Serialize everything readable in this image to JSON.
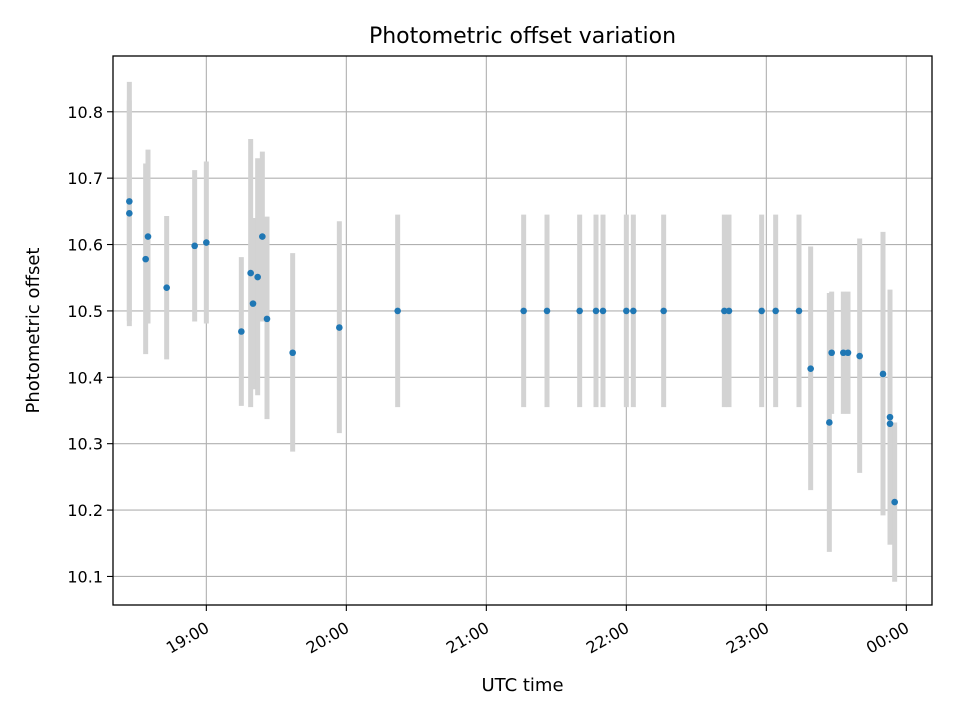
{
  "chart_data": {
    "type": "scatter",
    "title": "Photometric offset variation",
    "xlabel": "UTC time",
    "ylabel": "Photometric offset",
    "xlim": [
      "18:20",
      "00:11"
    ],
    "ylim": [
      10.057,
      10.884
    ],
    "x_ticks": [
      "19:00",
      "20:00",
      "21:00",
      "22:00",
      "23:00",
      "00:00"
    ],
    "y_ticks": [
      "10.1",
      "10.2",
      "10.3",
      "10.4",
      "10.5",
      "10.6",
      "10.7",
      "10.8"
    ],
    "grid": true,
    "marker_color": "#1f77b4",
    "errorbar_color": "#d3d3d3",
    "points": [
      {
        "t": "18:27",
        "y": 10.647,
        "lo": 10.477,
        "hi": 10.817
      },
      {
        "t": "18:27",
        "y": 10.665,
        "lo": 10.485,
        "hi": 10.845
      },
      {
        "t": "18:34",
        "y": 10.578,
        "lo": 10.435,
        "hi": 10.722
      },
      {
        "t": "18:35",
        "y": 10.612,
        "lo": 10.481,
        "hi": 10.743
      },
      {
        "t": "18:43",
        "y": 10.535,
        "lo": 10.427,
        "hi": 10.643
      },
      {
        "t": "18:55",
        "y": 10.598,
        "lo": 10.484,
        "hi": 10.712
      },
      {
        "t": "19:00",
        "y": 10.603,
        "lo": 10.481,
        "hi": 10.725
      },
      {
        "t": "19:15",
        "y": 10.469,
        "lo": 10.357,
        "hi": 10.581
      },
      {
        "t": "19:19",
        "y": 10.557,
        "lo": 10.355,
        "hi": 10.759
      },
      {
        "t": "19:20",
        "y": 10.511,
        "lo": 10.382,
        "hi": 10.64
      },
      {
        "t": "19:22",
        "y": 10.551,
        "lo": 10.373,
        "hi": 10.73
      },
      {
        "t": "19:24",
        "y": 10.612,
        "lo": 10.484,
        "hi": 10.74
      },
      {
        "t": "19:26",
        "y": 10.488,
        "lo": 10.337,
        "hi": 10.642
      },
      {
        "t": "19:37",
        "y": 10.437,
        "lo": 10.288,
        "hi": 10.587
      },
      {
        "t": "19:57",
        "y": 10.475,
        "lo": 10.316,
        "hi": 10.635
      },
      {
        "t": "20:22",
        "y": 10.5,
        "lo": 10.355,
        "hi": 10.645
      },
      {
        "t": "21:16",
        "y": 10.5,
        "lo": 10.355,
        "hi": 10.645
      },
      {
        "t": "21:26",
        "y": 10.5,
        "lo": 10.355,
        "hi": 10.645
      },
      {
        "t": "21:40",
        "y": 10.5,
        "lo": 10.355,
        "hi": 10.645
      },
      {
        "t": "21:47",
        "y": 10.5,
        "lo": 10.355,
        "hi": 10.645
      },
      {
        "t": "21:50",
        "y": 10.5,
        "lo": 10.355,
        "hi": 10.645
      },
      {
        "t": "22:00",
        "y": 10.5,
        "lo": 10.355,
        "hi": 10.645
      },
      {
        "t": "22:03",
        "y": 10.5,
        "lo": 10.355,
        "hi": 10.645
      },
      {
        "t": "22:16",
        "y": 10.5,
        "lo": 10.355,
        "hi": 10.645
      },
      {
        "t": "22:42",
        "y": 10.5,
        "lo": 10.355,
        "hi": 10.645
      },
      {
        "t": "22:44",
        "y": 10.5,
        "lo": 10.355,
        "hi": 10.645
      },
      {
        "t": "22:58",
        "y": 10.5,
        "lo": 10.355,
        "hi": 10.645
      },
      {
        "t": "23:04",
        "y": 10.5,
        "lo": 10.355,
        "hi": 10.645
      },
      {
        "t": "23:14",
        "y": 10.5,
        "lo": 10.355,
        "hi": 10.645
      },
      {
        "t": "23:19",
        "y": 10.413,
        "lo": 10.23,
        "hi": 10.597
      },
      {
        "t": "23:27",
        "y": 10.332,
        "lo": 10.137,
        "hi": 10.527
      },
      {
        "t": "23:28",
        "y": 10.437,
        "lo": 10.345,
        "hi": 10.529
      },
      {
        "t": "23:33",
        "y": 10.437,
        "lo": 10.345,
        "hi": 10.529
      },
      {
        "t": "23:35",
        "y": 10.437,
        "lo": 10.345,
        "hi": 10.529
      },
      {
        "t": "23:40",
        "y": 10.432,
        "lo": 10.256,
        "hi": 10.609
      },
      {
        "t": "23:50",
        "y": 10.405,
        "lo": 10.192,
        "hi": 10.619
      },
      {
        "t": "23:53",
        "y": 10.34,
        "lo": 10.148,
        "hi": 10.532
      },
      {
        "t": "23:53",
        "y": 10.33,
        "lo": 10.148,
        "hi": 10.512
      },
      {
        "t": "23:55",
        "y": 10.212,
        "lo": 10.092,
        "hi": 10.332
      }
    ]
  }
}
